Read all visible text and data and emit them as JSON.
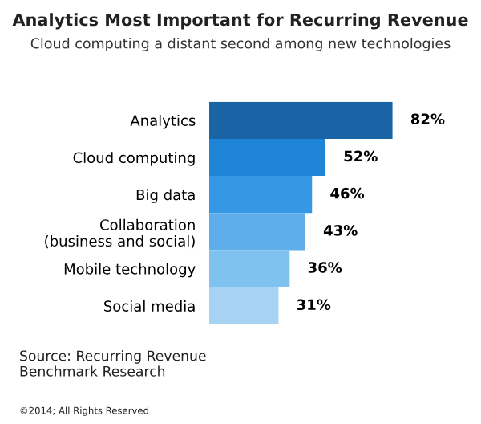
{
  "chart_data": {
    "type": "bar",
    "orientation": "horizontal",
    "title": "Analytics Most Important for Recurring Revenue",
    "subtitle": "Cloud computing a distant second among new technologies",
    "categories": [
      "Analytics",
      "Cloud computing",
      "Big data",
      "Collaboration\n(business and social)",
      "Mobile technology",
      "Social media"
    ],
    "values": [
      82,
      52,
      46,
      43,
      36,
      31
    ],
    "value_labels": [
      "82%",
      "52%",
      "46%",
      "43%",
      "36%",
      "31%"
    ],
    "colors": [
      "#1a64a6",
      "#1f84d6",
      "#3598e4",
      "#5daeea",
      "#80c2ef",
      "#a6d3f4"
    ],
    "tick_labels": "y",
    "grid": false,
    "annotations": [
      "Source: Recurring Revenue\nBenchmark Research",
      "©2014; All Rights Reserved"
    ]
  }
}
